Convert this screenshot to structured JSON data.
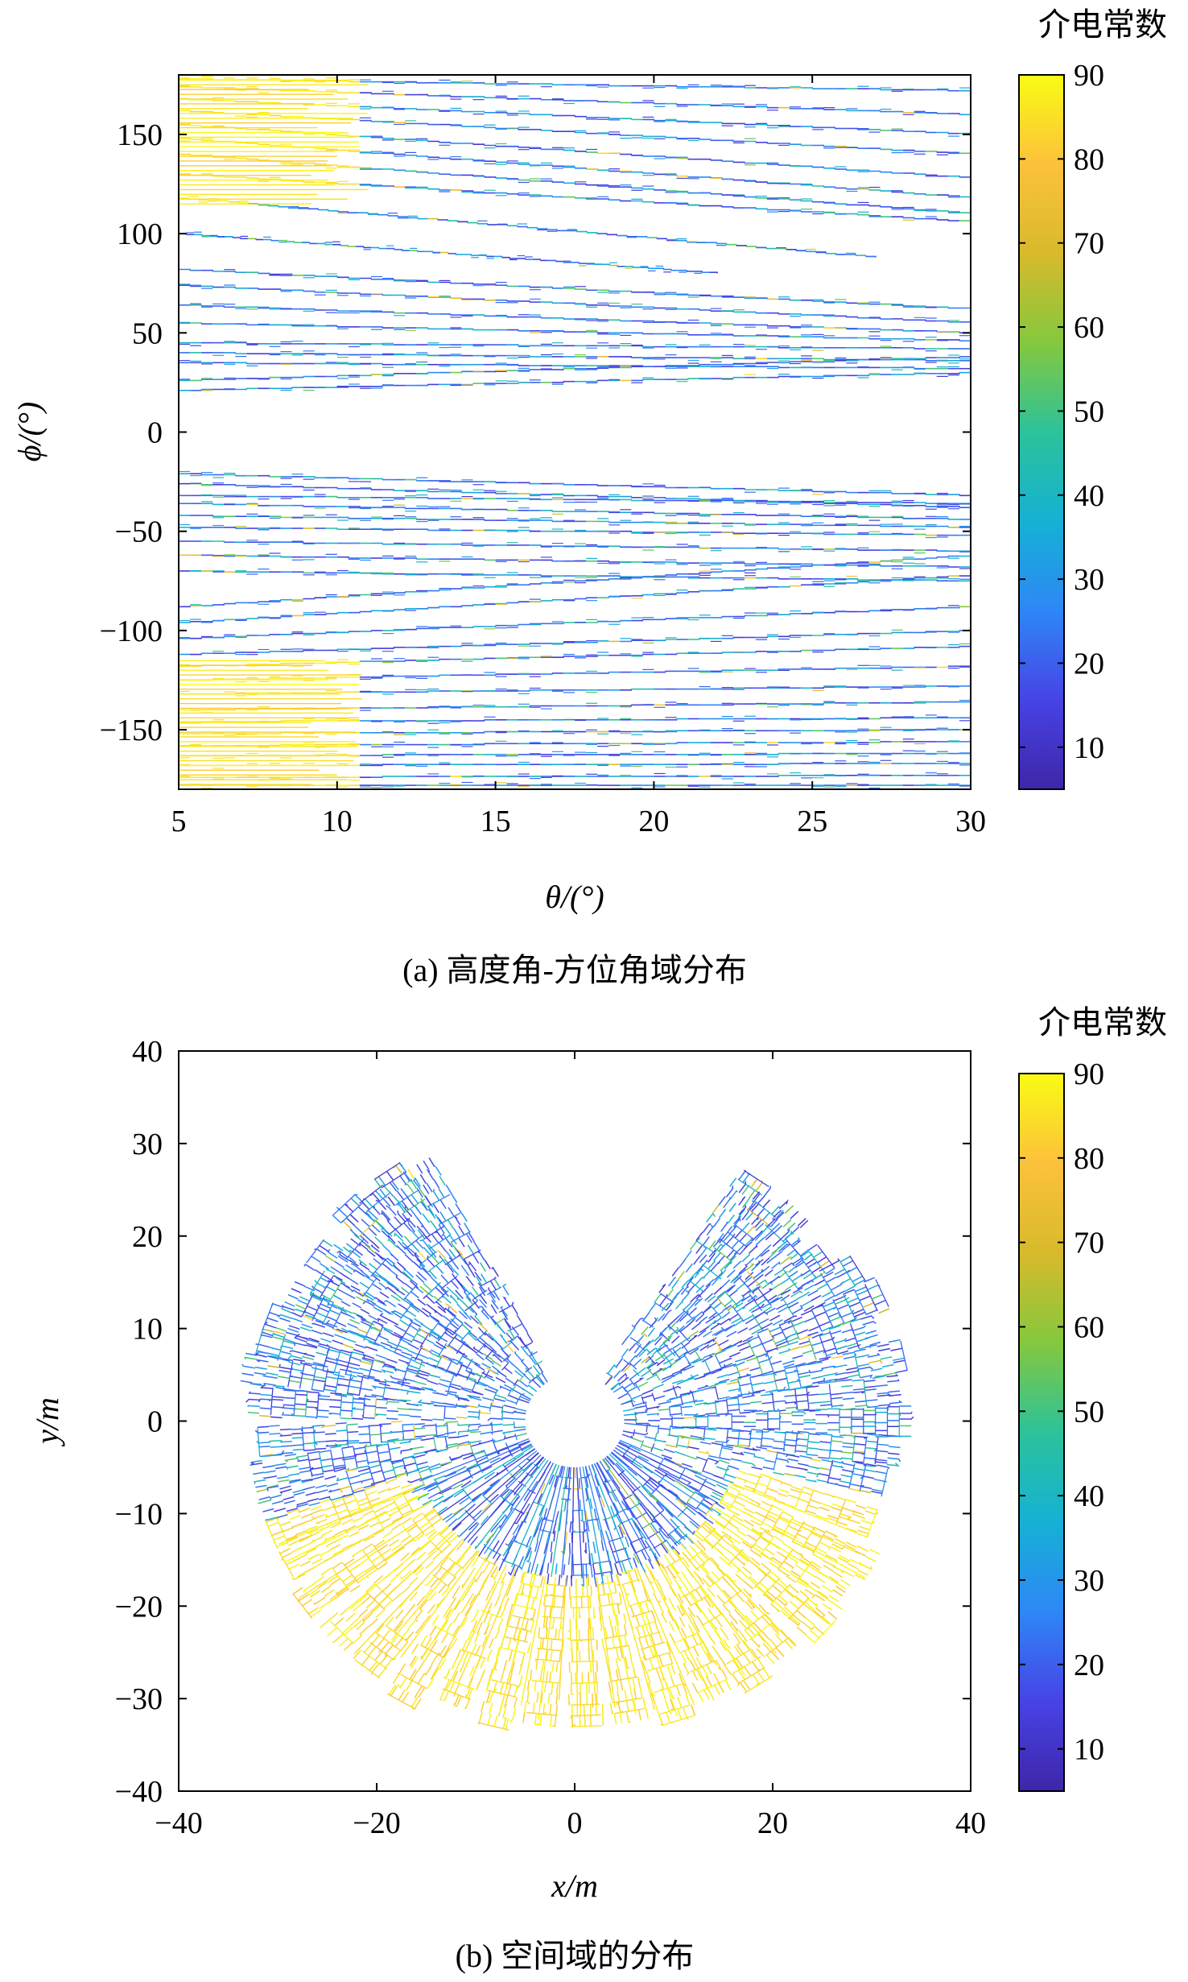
{
  "chart_data": [
    {
      "type": "heatmap",
      "caption": "(a) 高度角-方位角域分布",
      "xlabel": "θ/(°)",
      "ylabel": "ϕ/(°)",
      "xlim": [
        5,
        30
      ],
      "ylim": [
        -180,
        180
      ],
      "xticks": [
        5,
        10,
        15,
        20,
        25,
        30
      ],
      "yticks": [
        -150,
        -100,
        -50,
        0,
        50,
        100,
        150
      ],
      "colorbar": {
        "title": "介电常数",
        "range": [
          5,
          90
        ],
        "ticks": [
          10,
          20,
          30,
          40,
          50,
          60,
          70,
          80,
          90
        ]
      },
      "colormap": [
        "#3e26a8",
        "#4743e6",
        "#2e87f6",
        "#15b1d4",
        "#2cc29a",
        "#84c83e",
        "#d8ba2c",
        "#fcc13b",
        "#f9fb15"
      ],
      "gap_phi_range": [
        -20,
        20
      ],
      "high_value_region": {
        "theta": [
          5,
          11
        ],
        "phi_ranges": [
          [
            115,
            180
          ],
          [
            -180,
            -115
          ]
        ],
        "value": 88
      },
      "tracks": [
        {
          "phi_start": 178,
          "phi_end": 172,
          "theta_start": 5,
          "theta_end": 30
        },
        {
          "phi_start": 174,
          "phi_end": 160,
          "theta_start": 5,
          "theta_end": 30
        },
        {
          "phi_start": 168,
          "phi_end": 150,
          "theta_start": 5,
          "theta_end": 30
        },
        {
          "phi_start": 162,
          "phi_end": 140,
          "theta_start": 5,
          "theta_end": 30
        },
        {
          "phi_start": 155,
          "phi_end": 128,
          "theta_start": 5,
          "theta_end": 30
        },
        {
          "phi_start": 148,
          "phi_end": 118,
          "theta_start": 5,
          "theta_end": 30
        },
        {
          "phi_start": 140,
          "phi_end": 110,
          "theta_start": 5,
          "theta_end": 30
        },
        {
          "phi_start": 130,
          "phi_end": 106,
          "theta_start": 5,
          "theta_end": 30
        },
        {
          "phi_start": 118,
          "phi_end": 88,
          "theta_start": 5,
          "theta_end": 27
        },
        {
          "phi_start": 100,
          "phi_end": 80,
          "theta_start": 5,
          "theta_end": 22
        },
        {
          "phi_start": 82,
          "phi_end": 62,
          "theta_start": 5,
          "theta_end": 30
        },
        {
          "phi_start": 74,
          "phi_end": 55,
          "theta_start": 5,
          "theta_end": 30
        },
        {
          "phi_start": 64,
          "phi_end": 50,
          "theta_start": 5,
          "theta_end": 30
        },
        {
          "phi_start": 55,
          "phi_end": 46,
          "theta_start": 5,
          "theta_end": 30
        },
        {
          "phi_start": 45,
          "phi_end": 42,
          "theta_start": 5,
          "theta_end": 30
        },
        {
          "phi_start": 40,
          "phi_end": 36,
          "theta_start": 5,
          "theta_end": 30
        },
        {
          "phi_start": 35,
          "phi_end": 32,
          "theta_start": 5,
          "theta_end": 30
        },
        {
          "phi_start": 26,
          "phi_end": 38,
          "theta_start": 5,
          "theta_end": 30
        },
        {
          "phi_start": 21,
          "phi_end": 30,
          "theta_start": 5,
          "theta_end": 30
        },
        {
          "phi_start": -21,
          "phi_end": -32,
          "theta_start": 5,
          "theta_end": 30
        },
        {
          "phi_start": -26,
          "phi_end": -38,
          "theta_start": 5,
          "theta_end": 30
        },
        {
          "phi_start": -32,
          "phi_end": -36,
          "theta_start": 5,
          "theta_end": 30
        },
        {
          "phi_start": -36,
          "phi_end": -44,
          "theta_start": 5,
          "theta_end": 30
        },
        {
          "phi_start": -42,
          "phi_end": -48,
          "theta_start": 5,
          "theta_end": 30
        },
        {
          "phi_start": -48,
          "phi_end": -52,
          "theta_start": 5,
          "theta_end": 30
        },
        {
          "phi_start": -55,
          "phi_end": -60,
          "theta_start": 5,
          "theta_end": 30
        },
        {
          "phi_start": -62,
          "phi_end": -68,
          "theta_start": 5,
          "theta_end": 30
        },
        {
          "phi_start": -70,
          "phi_end": -75,
          "theta_start": 5,
          "theta_end": 30
        },
        {
          "phi_start": -88,
          "phi_end": -62,
          "theta_start": 5,
          "theta_end": 30
        },
        {
          "phi_start": -96,
          "phi_end": -72,
          "theta_start": 5,
          "theta_end": 30
        },
        {
          "phi_start": -104,
          "phi_end": -88,
          "theta_start": 5,
          "theta_end": 30
        },
        {
          "phi_start": -112,
          "phi_end": -100,
          "theta_start": 5,
          "theta_end": 30
        },
        {
          "phi_start": -118,
          "phi_end": -108,
          "theta_start": 5,
          "theta_end": 30
        },
        {
          "phi_start": -125,
          "phi_end": -118,
          "theta_start": 5,
          "theta_end": 30
        },
        {
          "phi_start": -132,
          "phi_end": -128,
          "theta_start": 5,
          "theta_end": 30
        },
        {
          "phi_start": -140,
          "phi_end": -136,
          "theta_start": 5,
          "theta_end": 30
        },
        {
          "phi_start": -146,
          "phi_end": -144,
          "theta_start": 5,
          "theta_end": 30
        },
        {
          "phi_start": -152,
          "phi_end": -150,
          "theta_start": 5,
          "theta_end": 30
        },
        {
          "phi_start": -158,
          "phi_end": -156,
          "theta_start": 5,
          "theta_end": 30
        },
        {
          "phi_start": -163,
          "phi_end": -162,
          "theta_start": 5,
          "theta_end": 30
        },
        {
          "phi_start": -168,
          "phi_end": -167,
          "theta_start": 5,
          "theta_end": 30
        },
        {
          "phi_start": -174,
          "phi_end": -173,
          "theta_start": 5,
          "theta_end": 30
        },
        {
          "phi_start": -178,
          "phi_end": -178,
          "theta_start": 5,
          "theta_end": 30
        }
      ]
    },
    {
      "type": "heatmap",
      "caption": "(b) 空间域的分布",
      "xlabel": "x/m",
      "ylabel": "y/m",
      "xlim": [
        -40,
        40
      ],
      "ylim": [
        -40,
        40
      ],
      "xticks": [
        -40,
        -20,
        0,
        20,
        40
      ],
      "yticks": [
        -40,
        -30,
        -20,
        -10,
        0,
        10,
        20,
        30,
        40
      ],
      "colorbar": {
        "title": "介电常数",
        "range": [
          5,
          90
        ],
        "ticks": [
          10,
          20,
          30,
          40,
          50,
          60,
          70,
          80,
          90
        ]
      },
      "colormap": [
        "#3e26a8",
        "#4743e6",
        "#2e87f6",
        "#15b1d4",
        "#2cc29a",
        "#84c83e",
        "#d8ba2c",
        "#fcc13b",
        "#f9fb15"
      ],
      "inner_radius_m": 5,
      "empty_sector_deg": [
        55,
        120
      ],
      "high_value_region": {
        "angle_deg": [
          -160,
          -20
        ],
        "radius_min_m": 17,
        "value": 88
      },
      "rays": [
        {
          "angle_deg": 170,
          "length_m": 34
        },
        {
          "angle_deg": 165,
          "length_m": 33
        },
        {
          "angle_deg": 160,
          "length_m": 33
        },
        {
          "angle_deg": 155,
          "length_m": 32
        },
        {
          "angle_deg": 150,
          "length_m": 30
        },
        {
          "angle_deg": 145,
          "length_m": 32
        },
        {
          "angle_deg": 140,
          "length_m": 30
        },
        {
          "angle_deg": 135,
          "length_m": 33
        },
        {
          "angle_deg": 130,
          "length_m": 32
        },
        {
          "angle_deg": 125,
          "length_m": 33
        },
        {
          "angle_deg": 120,
          "length_m": 32
        },
        {
          "angle_deg": 55,
          "length_m": 32
        },
        {
          "angle_deg": 50,
          "length_m": 31
        },
        {
          "angle_deg": 45,
          "length_m": 32
        },
        {
          "angle_deg": 40,
          "length_m": 30
        },
        {
          "angle_deg": 35,
          "length_m": 31
        },
        {
          "angle_deg": 30,
          "length_m": 33
        },
        {
          "angle_deg": 24,
          "length_m": 34
        },
        {
          "angle_deg": 18,
          "length_m": 32
        },
        {
          "angle_deg": 12,
          "length_m": 34
        },
        {
          "angle_deg": 6,
          "length_m": 33
        },
        {
          "angle_deg": 0,
          "length_m": 34
        },
        {
          "angle_deg": -6,
          "length_m": 33
        },
        {
          "angle_deg": -12,
          "length_m": 32
        },
        {
          "angle_deg": -20,
          "length_m": 32
        },
        {
          "angle_deg": -28,
          "length_m": 34
        },
        {
          "angle_deg": -35,
          "length_m": 33
        },
        {
          "angle_deg": -42,
          "length_m": 34
        },
        {
          "angle_deg": -50,
          "length_m": 33
        },
        {
          "angle_deg": -57,
          "length_m": 34
        },
        {
          "angle_deg": -64,
          "length_m": 33
        },
        {
          "angle_deg": -72,
          "length_m": 34
        },
        {
          "angle_deg": -80,
          "length_m": 33
        },
        {
          "angle_deg": -88,
          "length_m": 33
        },
        {
          "angle_deg": -96,
          "length_m": 33
        },
        {
          "angle_deg": -104,
          "length_m": 34
        },
        {
          "angle_deg": -112,
          "length_m": 33
        },
        {
          "angle_deg": -120,
          "length_m": 35
        },
        {
          "angle_deg": -128,
          "length_m": 34
        },
        {
          "angle_deg": -136,
          "length_m": 34
        },
        {
          "angle_deg": -144,
          "length_m": 34
        },
        {
          "angle_deg": -152,
          "length_m": 33
        },
        {
          "angle_deg": -158,
          "length_m": 33
        },
        {
          "angle_deg": -164,
          "length_m": 33
        },
        {
          "angle_deg": -170,
          "length_m": 33
        },
        {
          "angle_deg": -176,
          "length_m": 32
        },
        {
          "angle_deg": 176,
          "length_m": 33
        }
      ]
    }
  ]
}
